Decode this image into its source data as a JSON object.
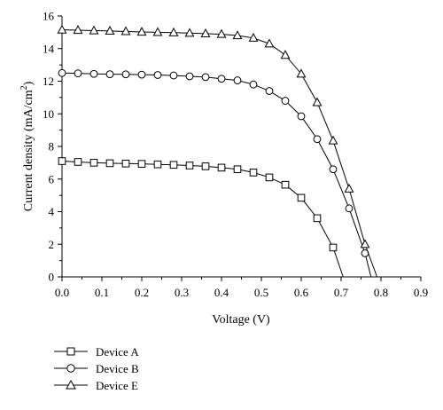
{
  "chart_data": {
    "type": "line",
    "xlabel": "Voltage (V)",
    "ylabel_main": "Current density (mA/cm",
    "ylabel_sup": "2",
    "ylabel_tail": ")",
    "xlim": [
      0,
      0.9
    ],
    "ylim": [
      0,
      16
    ],
    "x_ticks": [
      "0.0",
      "0.1",
      "0.2",
      "0.3",
      "0.4",
      "0.5",
      "0.6",
      "0.7",
      "0.8",
      "0.9"
    ],
    "y_ticks": [
      "0",
      "2",
      "4",
      "6",
      "8",
      "10",
      "12",
      "14",
      "16"
    ],
    "grid": false,
    "legend_position": "bottom-left",
    "series": [
      {
        "name": "Device A",
        "marker": "square",
        "x": [
          0.0,
          0.04,
          0.08,
          0.12,
          0.16,
          0.2,
          0.24,
          0.28,
          0.32,
          0.36,
          0.4,
          0.44,
          0.48,
          0.52,
          0.56,
          0.6,
          0.64,
          0.68,
          0.705
        ],
        "y": [
          7.1,
          7.05,
          7.0,
          6.97,
          6.95,
          6.93,
          6.9,
          6.87,
          6.83,
          6.78,
          6.7,
          6.6,
          6.4,
          6.1,
          5.65,
          4.85,
          3.6,
          1.8,
          0
        ]
      },
      {
        "name": "Device B",
        "marker": "circle",
        "x": [
          0.0,
          0.04,
          0.08,
          0.12,
          0.16,
          0.2,
          0.24,
          0.28,
          0.32,
          0.36,
          0.4,
          0.44,
          0.48,
          0.52,
          0.56,
          0.6,
          0.64,
          0.68,
          0.72,
          0.76,
          0.775
        ],
        "y": [
          12.5,
          12.48,
          12.45,
          12.43,
          12.42,
          12.4,
          12.38,
          12.35,
          12.3,
          12.25,
          12.15,
          12.05,
          11.8,
          11.4,
          10.8,
          9.85,
          8.45,
          6.6,
          4.2,
          1.45,
          0
        ]
      },
      {
        "name": "Device E",
        "marker": "triangle",
        "x": [
          0.0,
          0.04,
          0.08,
          0.12,
          0.16,
          0.2,
          0.24,
          0.28,
          0.32,
          0.36,
          0.4,
          0.44,
          0.48,
          0.52,
          0.56,
          0.6,
          0.64,
          0.68,
          0.72,
          0.76,
          0.79
        ],
        "y": [
          15.15,
          15.13,
          15.1,
          15.08,
          15.05,
          15.02,
          15.0,
          14.98,
          14.95,
          14.92,
          14.88,
          14.8,
          14.65,
          14.3,
          13.6,
          12.45,
          10.7,
          8.35,
          5.4,
          2.0,
          0
        ]
      }
    ]
  }
}
